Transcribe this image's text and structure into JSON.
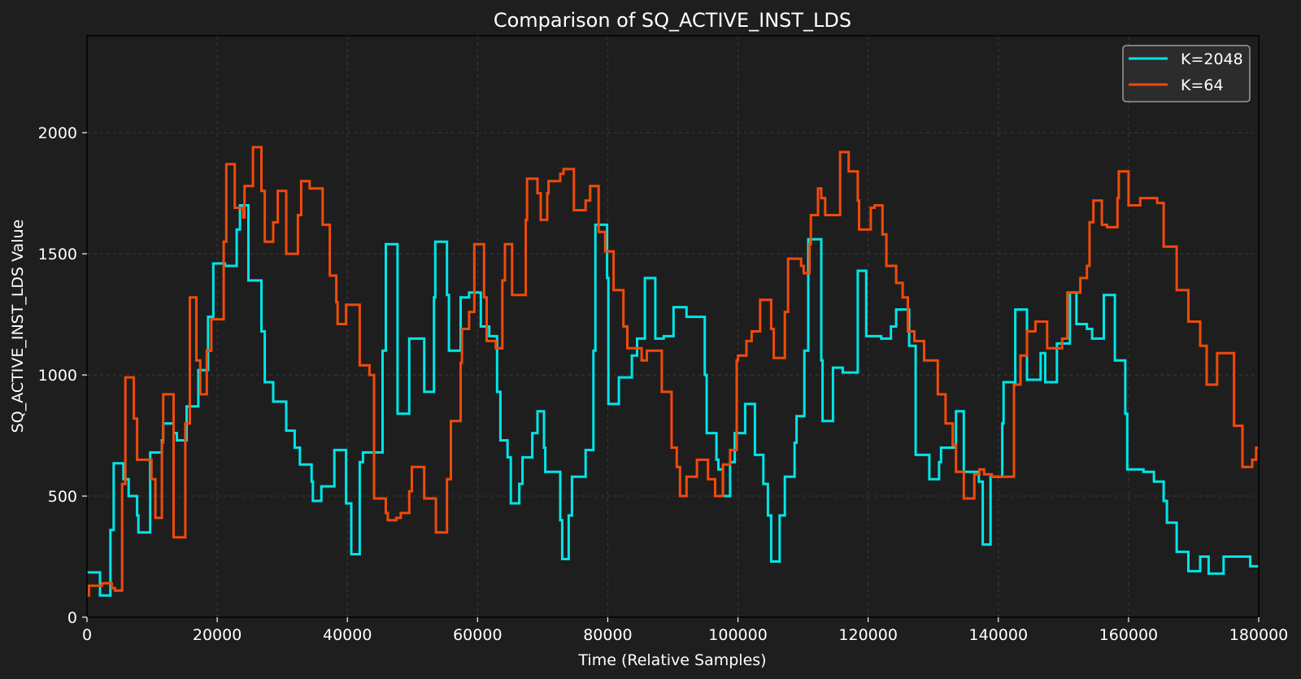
{
  "chart_data": {
    "type": "line",
    "step": "post",
    "title": "Comparison of SQ_ACTIVE_INST_LDS",
    "xlabel": "Time (Relative Samples)",
    "ylabel": "SQ_ACTIVE_INST_LDS Value",
    "xlim": [
      0,
      180000
    ],
    "ylim": [
      0,
      2400
    ],
    "xticks": [
      0,
      20000,
      40000,
      60000,
      80000,
      100000,
      120000,
      140000,
      160000,
      180000
    ],
    "yticks": [
      0,
      500,
      1000,
      1500,
      2000
    ],
    "grid": true,
    "legend_position": "top-right",
    "background": "#1e1e1e",
    "series": [
      {
        "name": "K=2048",
        "color": "#00e5e8",
        "points": [
          [
            0,
            185
          ],
          [
            2000,
            90
          ],
          [
            3600,
            360
          ],
          [
            4100,
            635
          ],
          [
            5600,
            570
          ],
          [
            6400,
            500
          ],
          [
            7700,
            420
          ],
          [
            7900,
            350
          ],
          [
            9700,
            680
          ],
          [
            11500,
            730
          ],
          [
            11700,
            800
          ],
          [
            13300,
            760
          ],
          [
            13800,
            730
          ],
          [
            15300,
            870
          ],
          [
            17100,
            1020
          ],
          [
            18600,
            1240
          ],
          [
            19400,
            1460
          ],
          [
            21200,
            1450
          ],
          [
            23000,
            1600
          ],
          [
            23500,
            1700
          ],
          [
            24800,
            1390
          ],
          [
            26800,
            1180
          ],
          [
            27300,
            970
          ],
          [
            28600,
            890
          ],
          [
            30600,
            770
          ],
          [
            31900,
            700
          ],
          [
            32700,
            630
          ],
          [
            34500,
            560
          ],
          [
            34700,
            480
          ],
          [
            36000,
            540
          ],
          [
            38000,
            690
          ],
          [
            39800,
            470
          ],
          [
            40600,
            260
          ],
          [
            41900,
            640
          ],
          [
            42400,
            680
          ],
          [
            45400,
            1100
          ],
          [
            45900,
            1540
          ],
          [
            47700,
            840
          ],
          [
            49500,
            1150
          ],
          [
            51800,
            930
          ],
          [
            53300,
            1320
          ],
          [
            53500,
            1550
          ],
          [
            55300,
            1330
          ],
          [
            55600,
            1100
          ],
          [
            57400,
            1320
          ],
          [
            58700,
            1340
          ],
          [
            60500,
            1200
          ],
          [
            61800,
            1160
          ],
          [
            63000,
            930
          ],
          [
            63500,
            730
          ],
          [
            64600,
            660
          ],
          [
            65100,
            470
          ],
          [
            66400,
            550
          ],
          [
            66900,
            660
          ],
          [
            68400,
            760
          ],
          [
            69200,
            850
          ],
          [
            70200,
            700
          ],
          [
            70400,
            600
          ],
          [
            72200,
            600
          ],
          [
            72700,
            400
          ],
          [
            73000,
            240
          ],
          [
            74000,
            420
          ],
          [
            74500,
            580
          ],
          [
            76600,
            690
          ],
          [
            77800,
            1100
          ],
          [
            78100,
            1620
          ],
          [
            79900,
            1400
          ],
          [
            80100,
            880
          ],
          [
            81700,
            990
          ],
          [
            83700,
            1080
          ],
          [
            84500,
            1150
          ],
          [
            85700,
            1400
          ],
          [
            87300,
            1150
          ],
          [
            88600,
            1160
          ],
          [
            90100,
            1280
          ],
          [
            92100,
            1240
          ],
          [
            94900,
            1000
          ],
          [
            95200,
            760
          ],
          [
            96700,
            650
          ],
          [
            97000,
            610
          ],
          [
            97700,
            500
          ],
          [
            98800,
            640
          ],
          [
            99500,
            760
          ],
          [
            101100,
            880
          ],
          [
            102600,
            670
          ],
          [
            103900,
            550
          ],
          [
            104600,
            420
          ],
          [
            105100,
            230
          ],
          [
            106400,
            420
          ],
          [
            107200,
            580
          ],
          [
            108700,
            720
          ],
          [
            109000,
            830
          ],
          [
            110200,
            1100
          ],
          [
            110800,
            1560
          ],
          [
            112800,
            1060
          ],
          [
            113000,
            810
          ],
          [
            114600,
            1030
          ],
          [
            116100,
            1010
          ],
          [
            118400,
            1430
          ],
          [
            119700,
            1160
          ],
          [
            122000,
            1150
          ],
          [
            123500,
            1200
          ],
          [
            124300,
            1270
          ],
          [
            126300,
            1120
          ],
          [
            127300,
            670
          ],
          [
            129400,
            570
          ],
          [
            130900,
            640
          ],
          [
            131200,
            700
          ],
          [
            133500,
            850
          ],
          [
            134700,
            600
          ],
          [
            137000,
            560
          ],
          [
            137600,
            300
          ],
          [
            138800,
            580
          ],
          [
            140600,
            800
          ],
          [
            140800,
            970
          ],
          [
            142600,
            1270
          ],
          [
            144400,
            980
          ],
          [
            146500,
            1090
          ],
          [
            147200,
            970
          ],
          [
            149000,
            1130
          ],
          [
            151000,
            1340
          ],
          [
            152000,
            1210
          ],
          [
            153600,
            1190
          ],
          [
            154400,
            1150
          ],
          [
            156200,
            1330
          ],
          [
            157900,
            1060
          ],
          [
            159500,
            840
          ],
          [
            159800,
            610
          ],
          [
            162300,
            600
          ],
          [
            163900,
            560
          ],
          [
            165400,
            480
          ],
          [
            165900,
            390
          ],
          [
            167400,
            270
          ],
          [
            169200,
            190
          ],
          [
            171000,
            250
          ],
          [
            172300,
            180
          ],
          [
            174600,
            250
          ],
          [
            178700,
            210
          ],
          [
            180000,
            210
          ]
        ]
      },
      {
        "name": "K=64",
        "color": "#f04a0a",
        "points": [
          [
            0,
            90
          ],
          [
            300,
            130
          ],
          [
            1500,
            130
          ],
          [
            2300,
            140
          ],
          [
            3800,
            120
          ],
          [
            4300,
            110
          ],
          [
            5400,
            550
          ],
          [
            5900,
            990
          ],
          [
            7200,
            820
          ],
          [
            7700,
            650
          ],
          [
            9700,
            650
          ],
          [
            9900,
            570
          ],
          [
            10500,
            410
          ],
          [
            11500,
            720
          ],
          [
            11700,
            920
          ],
          [
            13300,
            330
          ],
          [
            15100,
            800
          ],
          [
            15800,
            1320
          ],
          [
            16800,
            1060
          ],
          [
            17400,
            920
          ],
          [
            18400,
            1100
          ],
          [
            19100,
            1230
          ],
          [
            21000,
            1550
          ],
          [
            21400,
            1870
          ],
          [
            22700,
            1690
          ],
          [
            24000,
            1650
          ],
          [
            24200,
            1780
          ],
          [
            25500,
            1940
          ],
          [
            26800,
            1760
          ],
          [
            27300,
            1550
          ],
          [
            28600,
            1630
          ],
          [
            29300,
            1760
          ],
          [
            30600,
            1500
          ],
          [
            32400,
            1660
          ],
          [
            32900,
            1800
          ],
          [
            34200,
            1770
          ],
          [
            36200,
            1620
          ],
          [
            37300,
            1410
          ],
          [
            38300,
            1300
          ],
          [
            38500,
            1210
          ],
          [
            39800,
            1290
          ],
          [
            41900,
            1040
          ],
          [
            43400,
            1000
          ],
          [
            44100,
            490
          ],
          [
            45900,
            430
          ],
          [
            46200,
            400
          ],
          [
            47500,
            410
          ],
          [
            48200,
            430
          ],
          [
            49500,
            520
          ],
          [
            49900,
            620
          ],
          [
            51800,
            490
          ],
          [
            53600,
            350
          ],
          [
            55300,
            570
          ],
          [
            55900,
            810
          ],
          [
            57400,
            1050
          ],
          [
            57600,
            1190
          ],
          [
            58700,
            1260
          ],
          [
            59500,
            1540
          ],
          [
            61000,
            1320
          ],
          [
            61400,
            1140
          ],
          [
            62800,
            1110
          ],
          [
            63800,
            1390
          ],
          [
            64200,
            1540
          ],
          [
            65300,
            1330
          ],
          [
            67400,
            1640
          ],
          [
            67600,
            1810
          ],
          [
            69200,
            1750
          ],
          [
            69700,
            1640
          ],
          [
            70700,
            1750
          ],
          [
            70900,
            1800
          ],
          [
            72700,
            1830
          ],
          [
            73200,
            1850
          ],
          [
            74800,
            1680
          ],
          [
            76600,
            1720
          ],
          [
            77300,
            1780
          ],
          [
            78600,
            1590
          ],
          [
            79600,
            1510
          ],
          [
            80900,
            1350
          ],
          [
            82400,
            1200
          ],
          [
            83000,
            1110
          ],
          [
            85200,
            1060
          ],
          [
            86000,
            1100
          ],
          [
            88300,
            930
          ],
          [
            89800,
            700
          ],
          [
            90600,
            620
          ],
          [
            91100,
            500
          ],
          [
            92100,
            580
          ],
          [
            93700,
            650
          ],
          [
            95400,
            570
          ],
          [
            96500,
            500
          ],
          [
            97700,
            630
          ],
          [
            98800,
            690
          ],
          [
            99800,
            1060
          ],
          [
            100000,
            1080
          ],
          [
            101300,
            1140
          ],
          [
            102100,
            1180
          ],
          [
            103400,
            1310
          ],
          [
            105100,
            1190
          ],
          [
            105500,
            1070
          ],
          [
            107200,
            1260
          ],
          [
            107700,
            1480
          ],
          [
            109700,
            1450
          ],
          [
            110100,
            1420
          ],
          [
            111000,
            1540
          ],
          [
            111200,
            1660
          ],
          [
            112300,
            1770
          ],
          [
            112800,
            1730
          ],
          [
            113400,
            1660
          ],
          [
            115700,
            1920
          ],
          [
            117000,
            1840
          ],
          [
            118400,
            1720
          ],
          [
            118600,
            1600
          ],
          [
            120400,
            1690
          ],
          [
            121000,
            1700
          ],
          [
            122200,
            1580
          ],
          [
            122800,
            1450
          ],
          [
            124300,
            1380
          ],
          [
            125300,
            1320
          ],
          [
            126100,
            1180
          ],
          [
            127100,
            1140
          ],
          [
            128600,
            1060
          ],
          [
            130700,
            920
          ],
          [
            131900,
            800
          ],
          [
            133000,
            710
          ],
          [
            133500,
            600
          ],
          [
            134700,
            490
          ],
          [
            136300,
            590
          ],
          [
            137100,
            610
          ],
          [
            137800,
            590
          ],
          [
            139000,
            580
          ],
          [
            142400,
            960
          ],
          [
            143400,
            1080
          ],
          [
            144400,
            1180
          ],
          [
            145700,
            1220
          ],
          [
            147500,
            1110
          ],
          [
            149800,
            1150
          ],
          [
            150600,
            1340
          ],
          [
            152600,
            1400
          ],
          [
            153600,
            1450
          ],
          [
            154000,
            1630
          ],
          [
            154600,
            1720
          ],
          [
            155900,
            1620
          ],
          [
            156700,
            1610
          ],
          [
            158300,
            1730
          ],
          [
            158500,
            1840
          ],
          [
            160000,
            1700
          ],
          [
            161800,
            1730
          ],
          [
            164400,
            1710
          ],
          [
            165400,
            1530
          ],
          [
            167400,
            1350
          ],
          [
            169200,
            1220
          ],
          [
            171000,
            1120
          ],
          [
            172000,
            960
          ],
          [
            173600,
            1090
          ],
          [
            174900,
            1090
          ],
          [
            176200,
            790
          ],
          [
            177500,
            620
          ],
          [
            179000,
            650
          ],
          [
            179600,
            700
          ],
          [
            180000,
            700
          ]
        ]
      }
    ]
  }
}
